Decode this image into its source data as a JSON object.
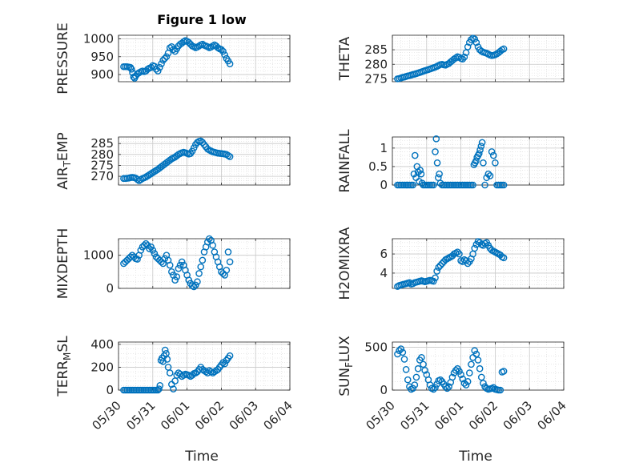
{
  "figure": {
    "title": "Figure 1 low",
    "x_axis_label": "Time",
    "x_ticks": [
      "05/30",
      "05/31",
      "06/01",
      "06/02",
      "06/03",
      "06/04"
    ],
    "marker_color": "#0072BD",
    "grid": "major and minor, dotted"
  },
  "chart_data": [
    {
      "type": "scatter",
      "ylabel": "PRESSURE",
      "ylim": [
        880,
        1010
      ],
      "yticks": [
        900,
        950,
        1000
      ],
      "ytick_labels": [
        "900",
        "950",
        "1000"
      ],
      "x": [
        30.15,
        30.2,
        30.25,
        30.3,
        30.35,
        30.38,
        30.41,
        30.44,
        30.47,
        30.5,
        30.55,
        30.6,
        30.65,
        30.7,
        30.75,
        30.8,
        30.85,
        30.9,
        30.95,
        31.0,
        31.05,
        31.1,
        31.15,
        31.2,
        31.25,
        31.3,
        31.35,
        31.4,
        31.45,
        31.5,
        31.55,
        31.6,
        31.65,
        31.7,
        31.75,
        31.8,
        31.85,
        31.9,
        31.95,
        32.0,
        32.05,
        32.1,
        32.15,
        32.2,
        32.25,
        32.3,
        32.35,
        32.4,
        32.45,
        32.5,
        32.55,
        32.6,
        32.65,
        32.7,
        32.75,
        32.8,
        32.85,
        32.9,
        32.95,
        33.0,
        33.05,
        33.1,
        33.15,
        33.2,
        33.25
      ],
      "y": [
        922,
        922,
        922,
        921,
        920,
        915,
        905,
        893,
        890,
        896,
        902,
        905,
        908,
        910,
        908,
        910,
        915,
        918,
        920,
        925,
        923,
        915,
        910,
        920,
        930,
        940,
        945,
        950,
        960,
        975,
        978,
        970,
        965,
        972,
        980,
        985,
        988,
        992,
        995,
        993,
        990,
        985,
        980,
        978,
        975,
        977,
        980,
        983,
        985,
        982,
        980,
        978,
        975,
        977,
        980,
        983,
        980,
        975,
        972,
        970,
        965,
        955,
        945,
        938,
        930
      ]
    },
    {
      "type": "scatter",
      "ylabel": "THETA",
      "ylim": [
        274,
        290
      ],
      "yticks": [
        275,
        280,
        285
      ],
      "ytick_labels": [
        "275",
        "280",
        "285"
      ],
      "x": [
        30.15,
        30.2,
        30.25,
        30.3,
        30.35,
        30.4,
        30.45,
        30.5,
        30.55,
        30.6,
        30.65,
        30.7,
        30.75,
        30.8,
        30.85,
        30.9,
        30.95,
        31.0,
        31.05,
        31.1,
        31.15,
        31.2,
        31.25,
        31.3,
        31.35,
        31.4,
        31.45,
        31.5,
        31.55,
        31.6,
        31.65,
        31.7,
        31.75,
        31.8,
        31.85,
        31.9,
        31.95,
        32.0,
        32.05,
        32.1,
        32.15,
        32.2,
        32.25,
        32.3,
        32.35,
        32.4,
        32.45,
        32.5,
        32.55,
        32.6,
        32.65,
        32.7,
        32.75,
        32.8,
        32.85,
        32.9,
        32.95,
        33.0,
        33.05,
        33.1,
        33.15,
        33.2,
        33.25
      ],
      "y": [
        275,
        275.1,
        275.3,
        275.5,
        275.6,
        275.8,
        276,
        276.1,
        276.3,
        276.5,
        276.6,
        276.8,
        277,
        277.2,
        277.4,
        277.6,
        277.8,
        278,
        278.2,
        278.4,
        278.6,
        278.8,
        279,
        279.3,
        279.6,
        279.9,
        280,
        279.8,
        279.7,
        280,
        280.3,
        280.8,
        281.3,
        281.8,
        282.2,
        282.6,
        282.4,
        282,
        281.8,
        282.5,
        284,
        286,
        287.5,
        288.5,
        289,
        288.7,
        287.5,
        286,
        285,
        284.5,
        284.2,
        284,
        283.8,
        283.5,
        283.2,
        283,
        283.1,
        283.3,
        283.6,
        284,
        284.5,
        285,
        285.3
      ]
    },
    {
      "type": "scatter",
      "ylabel": "AIR_TEMP",
      "ylim": [
        266,
        288
      ],
      "yticks": [
        270,
        275,
        280,
        285
      ],
      "ytick_labels": [
        "270",
        "275",
        "280",
        "285"
      ],
      "x": [
        30.15,
        30.2,
        30.25,
        30.3,
        30.35,
        30.4,
        30.45,
        30.5,
        30.55,
        30.6,
        30.65,
        30.7,
        30.75,
        30.8,
        30.85,
        30.9,
        30.95,
        31.0,
        31.05,
        31.1,
        31.15,
        31.2,
        31.25,
        31.3,
        31.35,
        31.4,
        31.45,
        31.5,
        31.55,
        31.6,
        31.65,
        31.7,
        31.75,
        31.8,
        31.85,
        31.9,
        31.95,
        32.0,
        32.05,
        32.1,
        32.15,
        32.2,
        32.25,
        32.3,
        32.35,
        32.4,
        32.45,
        32.5,
        32.55,
        32.6,
        32.65,
        32.7,
        32.75,
        32.8,
        32.85,
        32.9,
        32.95,
        33.0,
        33.05,
        33.1,
        33.15,
        33.2,
        33.25
      ],
      "y": [
        269,
        269,
        269.1,
        269.2,
        269.4,
        269.5,
        269.4,
        269.2,
        268.6,
        268,
        268.5,
        269,
        269.3,
        269.7,
        270.2,
        270.7,
        271.2,
        271.7,
        272.2,
        272.7,
        273.2,
        273.8,
        274.4,
        275,
        275.6,
        276.2,
        276.8,
        277.4,
        278,
        278.4,
        278.8,
        279.4,
        280,
        280.4,
        280.8,
        281,
        280.8,
        280.5,
        280.2,
        280.4,
        281.5,
        283,
        284.5,
        285.5,
        286,
        286.2,
        285.5,
        284.5,
        283.5,
        282.5,
        282,
        281.6,
        281.2,
        281,
        280.8,
        280.6,
        280.5,
        280.4,
        280.3,
        280.2,
        280,
        279.5,
        279
      ]
    },
    {
      "type": "scatter",
      "ylabel": "RAINFALL",
      "ylim": [
        0,
        1.3
      ],
      "yticks": [
        0,
        0.5,
        1
      ],
      "ytick_labels": [
        "0",
        "0.5",
        "1"
      ],
      "x": [
        30.15,
        30.2,
        30.25,
        30.3,
        30.35,
        30.4,
        30.45,
        30.5,
        30.55,
        30.6,
        30.63,
        30.66,
        30.69,
        30.72,
        30.75,
        30.78,
        30.81,
        30.84,
        30.87,
        30.9,
        30.95,
        31.0,
        31.05,
        31.1,
        31.15,
        31.2,
        31.25,
        31.28,
        31.31,
        31.34,
        31.37,
        31.4,
        31.45,
        31.5,
        31.55,
        31.6,
        31.65,
        31.7,
        31.75,
        31.8,
        31.85,
        31.9,
        31.95,
        32.0,
        32.05,
        32.1,
        32.15,
        32.2,
        32.25,
        32.3,
        32.35,
        32.38,
        32.41,
        32.44,
        32.47,
        32.5,
        32.53,
        32.56,
        32.59,
        32.62,
        32.65,
        32.7,
        32.75,
        32.8,
        32.85,
        32.9,
        32.95,
        33.0,
        33.05,
        33.1,
        33.15,
        33.2,
        33.25
      ],
      "y": [
        0,
        0,
        0,
        0,
        0,
        0,
        0,
        0,
        0,
        0,
        0.3,
        0.8,
        0.2,
        0.5,
        0.35,
        0.1,
        0.4,
        0.3,
        0.05,
        0,
        0,
        0,
        0,
        0,
        0,
        0,
        0.9,
        1.25,
        0.6,
        0.2,
        0.3,
        0.05,
        0,
        0,
        0,
        0,
        0,
        0,
        0,
        0,
        0,
        0,
        0,
        0,
        0,
        0,
        0,
        0,
        0,
        0,
        0,
        0.55,
        0.6,
        0.65,
        0.75,
        0.8,
        0.85,
        0.95,
        1.05,
        1.15,
        0.6,
        0,
        0.2,
        0.3,
        0.25,
        0.9,
        0.8,
        0.6,
        0,
        0,
        0,
        0,
        0
      ]
    },
    {
      "type": "scatter",
      "ylabel": "MIXDEPTH",
      "ylim": [
        0,
        1500
      ],
      "yticks": [
        0,
        1000
      ],
      "ytick_labels": [
        "0",
        "1000"
      ],
      "x": [
        30.15,
        30.2,
        30.25,
        30.3,
        30.35,
        30.4,
        30.45,
        30.5,
        30.55,
        30.6,
        30.65,
        30.7,
        30.75,
        30.8,
        30.85,
        30.9,
        30.95,
        31.0,
        31.05,
        31.1,
        31.15,
        31.2,
        31.25,
        31.3,
        31.35,
        31.4,
        31.45,
        31.5,
        31.55,
        31.6,
        31.65,
        31.7,
        31.75,
        31.8,
        31.85,
        31.9,
        31.95,
        32.0,
        32.05,
        32.1,
        32.15,
        32.2,
        32.25,
        32.3,
        32.35,
        32.4,
        32.45,
        32.5,
        32.55,
        32.6,
        32.65,
        32.7,
        32.75,
        32.8,
        32.85,
        32.9,
        32.95,
        33.0,
        33.05,
        33.1,
        33.15,
        33.2,
        33.25
      ],
      "y": [
        750,
        800,
        850,
        900,
        950,
        1000,
        950,
        900,
        880,
        1000,
        1150,
        1250,
        1300,
        1350,
        1300,
        1200,
        1250,
        1150,
        1050,
        950,
        900,
        850,
        800,
        750,
        900,
        1000,
        850,
        700,
        500,
        400,
        250,
        350,
        600,
        700,
        800,
        700,
        550,
        400,
        250,
        150,
        80,
        50,
        100,
        200,
        450,
        650,
        850,
        1100,
        1250,
        1400,
        1500,
        1450,
        1300,
        1100,
        950,
        800,
        650,
        500,
        450,
        400,
        550,
        1100,
        800
      ]
    },
    {
      "type": "scatter",
      "ylabel": "H2OMIXRA",
      "ylim": [
        2.4,
        7.6
      ],
      "yticks": [
        4,
        6
      ],
      "ytick_labels": [
        "4",
        "6"
      ],
      "x": [
        30.15,
        30.2,
        30.25,
        30.3,
        30.35,
        30.4,
        30.45,
        30.5,
        30.55,
        30.6,
        30.65,
        30.7,
        30.75,
        30.8,
        30.85,
        30.9,
        30.95,
        31.0,
        31.05,
        31.1,
        31.15,
        31.2,
        31.25,
        31.3,
        31.35,
        31.4,
        31.45,
        31.5,
        31.55,
        31.6,
        31.65,
        31.7,
        31.75,
        31.8,
        31.85,
        31.9,
        31.95,
        32.0,
        32.05,
        32.1,
        32.15,
        32.2,
        32.25,
        32.3,
        32.35,
        32.4,
        32.45,
        32.5,
        32.55,
        32.6,
        32.65,
        32.7,
        32.75,
        32.8,
        32.85,
        32.9,
        32.95,
        33.0,
        33.05,
        33.1,
        33.15,
        33.2,
        33.25
      ],
      "y": [
        2.6,
        2.7,
        2.75,
        2.8,
        2.85,
        2.9,
        2.95,
        3.0,
        2.85,
        2.9,
        3.0,
        3.05,
        3.1,
        3.15,
        3.2,
        3.15,
        3.1,
        3.15,
        3.2,
        3.25,
        3.2,
        3.15,
        3.5,
        4.2,
        4.6,
        4.8,
        5.0,
        5.2,
        5.4,
        5.5,
        5.6,
        5.7,
        5.8,
        6.0,
        6.1,
        6.2,
        6.0,
        5.3,
        5.2,
        5.4,
        5.3,
        5.0,
        5.2,
        5.5,
        6.0,
        6.6,
        7.0,
        7.3,
        7.2,
        7.0,
        6.9,
        7.1,
        7.2,
        6.9,
        6.6,
        6.4,
        6.3,
        6.2,
        6.1,
        6.0,
        5.9,
        5.7,
        5.6
      ]
    },
    {
      "type": "scatter",
      "ylabel": "TERR_MSL",
      "ylim": [
        0,
        420
      ],
      "yticks": [
        0,
        200,
        400
      ],
      "ytick_labels": [
        "0",
        "200",
        "400"
      ],
      "x": [
        30.15,
        30.2,
        30.25,
        30.3,
        30.35,
        30.4,
        30.45,
        30.5,
        30.55,
        30.6,
        30.65,
        30.7,
        30.75,
        30.8,
        30.85,
        30.9,
        30.95,
        31.0,
        31.05,
        31.1,
        31.15,
        31.18,
        31.21,
        31.24,
        31.27,
        31.3,
        31.33,
        31.36,
        31.39,
        31.42,
        31.45,
        31.5,
        31.55,
        31.6,
        31.65,
        31.7,
        31.75,
        31.8,
        31.85,
        31.9,
        31.95,
        32.0,
        32.05,
        32.1,
        32.15,
        32.2,
        32.25,
        32.3,
        32.35,
        32.4,
        32.45,
        32.5,
        32.55,
        32.6,
        32.65,
        32.7,
        32.75,
        32.8,
        32.85,
        32.9,
        32.95,
        33.0,
        33.05,
        33.1,
        33.15,
        33.2,
        33.25
      ],
      "y": [
        0,
        0,
        0,
        0,
        0,
        0,
        0,
        0,
        0,
        0,
        0,
        0,
        0,
        0,
        0,
        0,
        0,
        0,
        0,
        0,
        0,
        10,
        40,
        260,
        280,
        250,
        300,
        350,
        320,
        270,
        200,
        150,
        50,
        10,
        80,
        130,
        150,
        140,
        120,
        130,
        140,
        135,
        130,
        120,
        130,
        145,
        150,
        160,
        180,
        200,
        180,
        170,
        160,
        150,
        170,
        160,
        150,
        160,
        170,
        180,
        200,
        220,
        240,
        230,
        260,
        280,
        300
      ]
    },
    {
      "type": "scatter",
      "ylabel": "SUN_FLUX",
      "ylim": [
        0,
        560
      ],
      "yticks": [
        0,
        500
      ],
      "ytick_labels": [
        "0",
        "500"
      ],
      "x": [
        30.15,
        30.2,
        30.25,
        30.3,
        30.35,
        30.4,
        30.45,
        30.5,
        30.55,
        30.6,
        30.65,
        30.7,
        30.75,
        30.8,
        30.85,
        30.9,
        30.95,
        31.0,
        31.05,
        31.1,
        31.15,
        31.2,
        31.25,
        31.3,
        31.35,
        31.4,
        31.45,
        31.5,
        31.55,
        31.6,
        31.65,
        31.7,
        31.75,
        31.8,
        31.85,
        31.9,
        31.95,
        32.0,
        32.05,
        32.1,
        32.15,
        32.2,
        32.25,
        32.3,
        32.35,
        32.4,
        32.45,
        32.5,
        32.55,
        32.6,
        32.65,
        32.7,
        32.75,
        32.8,
        32.85,
        32.9,
        32.95,
        33.0,
        33.05,
        33.1,
        33.15,
        33.2,
        33.25
      ],
      "y": [
        420,
        460,
        480,
        440,
        360,
        240,
        120,
        40,
        10,
        20,
        60,
        150,
        250,
        350,
        380,
        300,
        230,
        180,
        120,
        60,
        20,
        10,
        30,
        70,
        110,
        120,
        100,
        70,
        40,
        20,
        40,
        90,
        150,
        200,
        230,
        250,
        220,
        180,
        130,
        80,
        60,
        100,
        200,
        300,
        380,
        460,
        420,
        350,
        250,
        150,
        80,
        40,
        20,
        10,
        15,
        20,
        30,
        10,
        5,
        0,
        0,
        210,
        220
      ]
    }
  ]
}
